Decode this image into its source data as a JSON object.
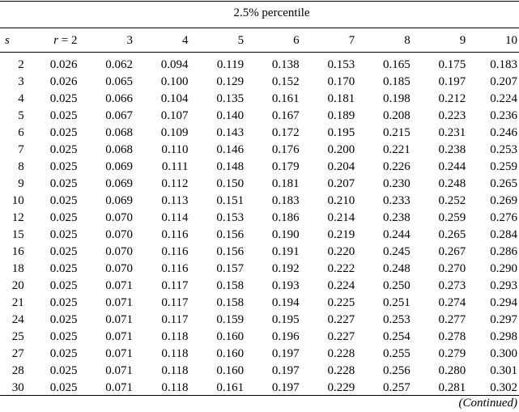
{
  "caption": "2.5% percentile",
  "header": {
    "row_label": "s",
    "first_col_var": "r",
    "first_col_eq": " = 2",
    "cols": [
      "3",
      "4",
      "5",
      "6",
      "7",
      "8",
      "9",
      "10"
    ]
  },
  "rows": [
    {
      "s": "2",
      "v": [
        "0.026",
        "0.062",
        "0.094",
        "0.119",
        "0.138",
        "0.153",
        "0.165",
        "0.175",
        "0.183"
      ]
    },
    {
      "s": "3",
      "v": [
        "0.026",
        "0.065",
        "0.100",
        "0.129",
        "0.152",
        "0.170",
        "0.185",
        "0.197",
        "0.207"
      ]
    },
    {
      "s": "4",
      "v": [
        "0.025",
        "0.066",
        "0.104",
        "0.135",
        "0.161",
        "0.181",
        "0.198",
        "0.212",
        "0.224"
      ]
    },
    {
      "s": "5",
      "v": [
        "0.025",
        "0.067",
        "0.107",
        "0.140",
        "0.167",
        "0.189",
        "0.208",
        "0.223",
        "0.236"
      ]
    },
    {
      "s": "6",
      "v": [
        "0.025",
        "0.068",
        "0.109",
        "0.143",
        "0.172",
        "0.195",
        "0.215",
        "0.231",
        "0.246"
      ]
    },
    {
      "s": "7",
      "v": [
        "0.025",
        "0.068",
        "0.110",
        "0.146",
        "0.176",
        "0.200",
        "0.221",
        "0.238",
        "0.253"
      ]
    },
    {
      "s": "8",
      "v": [
        "0.025",
        "0.069",
        "0.111",
        "0.148",
        "0.179",
        "0.204",
        "0.226",
        "0.244",
        "0.259"
      ]
    },
    {
      "s": "9",
      "v": [
        "0.025",
        "0.069",
        "0.112",
        "0.150",
        "0.181",
        "0.207",
        "0.230",
        "0.248",
        "0.265"
      ]
    },
    {
      "s": "10",
      "v": [
        "0.025",
        "0.069",
        "0.113",
        "0.151",
        "0.183",
        "0.210",
        "0.233",
        "0.252",
        "0.269"
      ]
    },
    {
      "s": "12",
      "v": [
        "0.025",
        "0.070",
        "0.114",
        "0.153",
        "0.186",
        "0.214",
        "0.238",
        "0.259",
        "0.276"
      ]
    },
    {
      "s": "15",
      "v": [
        "0.025",
        "0.070",
        "0.116",
        "0.156",
        "0.190",
        "0.219",
        "0.244",
        "0.265",
        "0.284"
      ]
    },
    {
      "s": "16",
      "v": [
        "0.025",
        "0.070",
        "0.116",
        "0.156",
        "0.191",
        "0.220",
        "0.245",
        "0.267",
        "0.286"
      ]
    },
    {
      "s": "18",
      "v": [
        "0.025",
        "0.070",
        "0.116",
        "0.157",
        "0.192",
        "0.222",
        "0.248",
        "0.270",
        "0.290"
      ]
    },
    {
      "s": "20",
      "v": [
        "0.025",
        "0.071",
        "0.117",
        "0.158",
        "0.193",
        "0.224",
        "0.250",
        "0.273",
        "0.293"
      ]
    },
    {
      "s": "21",
      "v": [
        "0.025",
        "0.071",
        "0.117",
        "0.158",
        "0.194",
        "0.225",
        "0.251",
        "0.274",
        "0.294"
      ]
    },
    {
      "s": "24",
      "v": [
        "0.025",
        "0.071",
        "0.117",
        "0.159",
        "0.195",
        "0.227",
        "0.253",
        "0.277",
        "0.297"
      ]
    },
    {
      "s": "25",
      "v": [
        "0.025",
        "0.071",
        "0.118",
        "0.160",
        "0.196",
        "0.227",
        "0.254",
        "0.278",
        "0.298"
      ]
    },
    {
      "s": "27",
      "v": [
        "0.025",
        "0.071",
        "0.118",
        "0.160",
        "0.197",
        "0.228",
        "0.255",
        "0.279",
        "0.300"
      ]
    },
    {
      "s": "28",
      "v": [
        "0.025",
        "0.071",
        "0.118",
        "0.160",
        "0.197",
        "0.228",
        "0.256",
        "0.280",
        "0.301"
      ]
    },
    {
      "s": "30",
      "v": [
        "0.025",
        "0.071",
        "0.118",
        "0.161",
        "0.197",
        "0.229",
        "0.257",
        "0.281",
        "0.302"
      ]
    }
  ],
  "footer": "(Continued)"
}
